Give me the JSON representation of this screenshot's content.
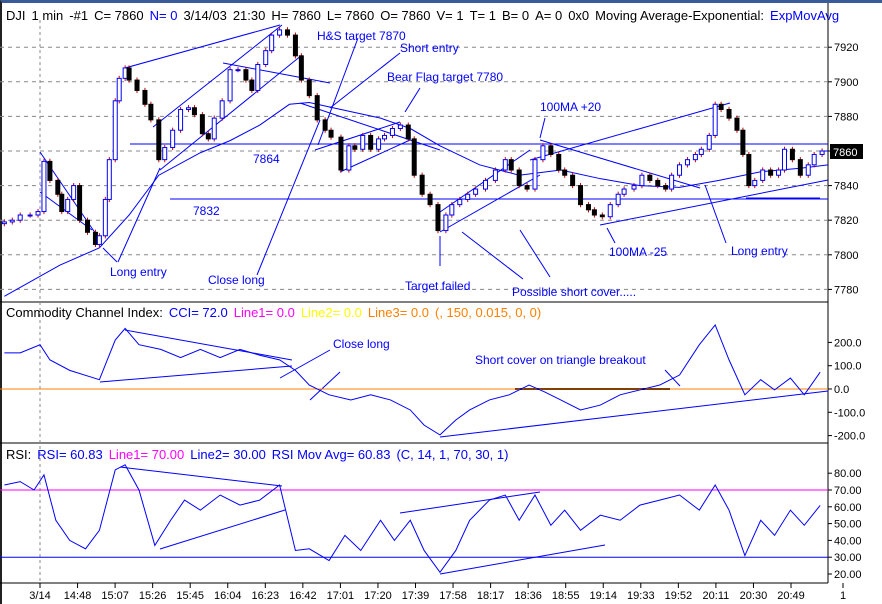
{
  "header": {
    "symbol": "DJI",
    "interval": "1 min",
    "chart_id": "-#1",
    "close": "C= 7860",
    "n": "N= 0",
    "date": "3/14/03",
    "time": "21:30",
    "high": "H= 7860",
    "low": "L= 7860",
    "open": "O= 7860",
    "volume": "V= 1",
    "ticks": "T= 1",
    "bid": "B= 0",
    "ask": "A= 0",
    "hex": "0x0",
    "study": "Moving Average-Exponential:",
    "study_name": "ExpMovAvg"
  },
  "cci_header": {
    "title": "Commodity Channel Index:",
    "cci": "CCI= 72.0",
    "line1": "Line1= 0.0",
    "line2": "Line2= 0.0",
    "line3": "Line3= 0.0",
    "params": "(, 150, 0.015, 0, 0)"
  },
  "rsi_header": {
    "title": "RSI:",
    "rsi": "RSI= 60.83",
    "line1": "Line1= 70.00",
    "line2": "Line2= 30.00",
    "mov_avg": "RSI Mov Avg= 60.83",
    "params": "(C, 14, 1, 70, 30, 1)"
  },
  "colors": {
    "up": "#0000ff",
    "down": "#000000",
    "wick": "#cc0000",
    "grid": "#888888",
    "cci_zero": "#ff8000",
    "rsi_line1": "#ff00ff",
    "rsi_line2": "#0000ff"
  },
  "current_price_label": "7860",
  "annotations": {
    "hs_target": "H&S target 7870",
    "short_entry": "Short entry",
    "bear_flag": "Bear Flag target 7780",
    "ma_plus": "100MA +20",
    "level_7864": "7864",
    "level_7832": "7832",
    "long_entry_1": "Long entry",
    "close_long": "Close long",
    "target_failed": "Target failed",
    "short_cover": "Possible short cover.....",
    "ma_minus": "100MA -25",
    "long_entry_2": "Long entry",
    "cci_close_long": "Close long",
    "cci_short_cover": "Short cover on triangle breakout"
  },
  "chart_data": [
    {
      "type": "candlestick",
      "title": "DJI 1 min",
      "y_ticks": [
        "7920",
        "7900",
        "7880",
        "7860",
        "7840",
        "7820",
        "7800",
        "7780"
      ],
      "ylim": [
        7772,
        7935
      ],
      "x_ticks": [
        "3/14",
        "14:48",
        "15:07",
        "15:26",
        "15:45",
        "16:04",
        "16:23",
        "16:42",
        "17:01",
        "17:20",
        "17:39",
        "17:58",
        "18:17",
        "18:36",
        "18:55",
        "19:14",
        "19:33",
        "19:52",
        "20:11",
        "20:30",
        "20:49",
        "1"
      ],
      "grid": true,
      "horizontal_levels": [
        7864,
        7832
      ],
      "close": [
        [
          "14:11",
          7819
        ],
        [
          "14:15",
          7820
        ],
        [
          "14:19",
          7823
        ],
        [
          "14:24",
          7823
        ],
        [
          "14:28",
          7825
        ],
        [
          "14:31",
          7854
        ],
        [
          "14:34",
          7843
        ],
        [
          "14:38",
          7835
        ],
        [
          "14:40",
          7825
        ],
        [
          "14:43",
          7832
        ],
        [
          "14:46",
          7840
        ],
        [
          "14:49",
          7820
        ],
        [
          "14:53",
          7813
        ],
        [
          "14:57",
          7806
        ],
        [
          "14:59",
          7811
        ],
        [
          "15:02",
          7832
        ],
        [
          "15:04",
          7855
        ],
        [
          "15:07",
          7889
        ],
        [
          "15:09",
          7902
        ],
        [
          "15:12",
          7908
        ],
        [
          "15:14",
          7901
        ],
        [
          "15:18",
          7895
        ],
        [
          "15:22",
          7887
        ],
        [
          "15:25",
          7878
        ],
        [
          "15:29",
          7855
        ],
        [
          "15:32",
          7862
        ],
        [
          "15:36",
          7872
        ],
        [
          "15:40",
          7884
        ],
        [
          "15:44",
          7885
        ],
        [
          "15:47",
          7881
        ],
        [
          "15:51",
          7870
        ],
        [
          "15:54",
          7867
        ],
        [
          "15:57",
          7879
        ],
        [
          "16:01",
          7889
        ],
        [
          "16:05",
          7907
        ],
        [
          "16:09",
          7907
        ],
        [
          "16:13",
          7901
        ],
        [
          "16:16",
          7895
        ],
        [
          "16:19",
          7910
        ],
        [
          "16:23",
          7918
        ],
        [
          "16:26",
          7927
        ],
        [
          "16:30",
          7930
        ],
        [
          "16:34",
          7927
        ],
        [
          "16:38",
          7915
        ],
        [
          "16:41",
          7901
        ],
        [
          "16:45",
          7892
        ],
        [
          "16:49",
          7878
        ],
        [
          "16:53",
          7872
        ],
        [
          "16:56",
          7868
        ],
        [
          "17:01",
          7849
        ],
        [
          "17:05",
          7863
        ],
        [
          "17:08",
          7861
        ],
        [
          "17:12",
          7869
        ],
        [
          "17:16",
          7861
        ],
        [
          "17:20",
          7867
        ],
        [
          "17:23",
          7869
        ],
        [
          "17:27",
          7873
        ],
        [
          "17:31",
          7875
        ],
        [
          "17:35",
          7867
        ],
        [
          "17:38",
          7846
        ],
        [
          "17:42",
          7835
        ],
        [
          "17:46",
          7829
        ],
        [
          "17:50",
          7814
        ],
        [
          "17:54",
          7823
        ],
        [
          "17:57",
          7829
        ],
        [
          "18:01",
          7832
        ],
        [
          "18:05",
          7835
        ],
        [
          "18:09",
          7838
        ],
        [
          "18:14",
          7843
        ],
        [
          "18:19",
          7849
        ],
        [
          "18:24",
          7855
        ],
        [
          "18:27",
          7849
        ],
        [
          "18:31",
          7840
        ],
        [
          "18:35",
          7838
        ],
        [
          "18:39",
          7855
        ],
        [
          "18:43",
          7863
        ],
        [
          "18:47",
          7858
        ],
        [
          "18:51",
          7849
        ],
        [
          "18:54",
          7846
        ],
        [
          "18:58",
          7840
        ],
        [
          "19:02",
          7829
        ],
        [
          "19:06",
          7826
        ],
        [
          "19:09",
          7823
        ],
        [
          "19:13",
          7822
        ],
        [
          "19:17",
          7829
        ],
        [
          "19:21",
          7835
        ],
        [
          "19:24",
          7838
        ],
        [
          "19:29",
          7840
        ],
        [
          "19:33",
          7846
        ],
        [
          "19:37",
          7843
        ],
        [
          "19:41",
          7840
        ],
        [
          "19:45",
          7838
        ],
        [
          "19:48",
          7846
        ],
        [
          "19:52",
          7852
        ],
        [
          "19:56",
          7855
        ],
        [
          "20:00",
          7858
        ],
        [
          "20:03",
          7861
        ],
        [
          "20:07",
          7869
        ],
        [
          "20:10",
          7887
        ],
        [
          "20:13",
          7884
        ],
        [
          "20:17",
          7879
        ],
        [
          "20:21",
          7872
        ],
        [
          "20:24",
          7858
        ],
        [
          "20:27",
          7840
        ],
        [
          "20:30",
          7843
        ],
        [
          "20:34",
          7849
        ],
        [
          "20:38",
          7846
        ],
        [
          "20:42",
          7849
        ],
        [
          "20:45",
          7861
        ],
        [
          "20:49",
          7855
        ],
        [
          "20:53",
          7846
        ],
        [
          "20:57",
          7852
        ],
        [
          "21:00",
          7858
        ],
        [
          "21:04",
          7860
        ]
      ],
      "moving_average": [
        [
          "14:11",
          7776
        ],
        [
          "14:39",
          7794
        ],
        [
          "14:59",
          7804
        ],
        [
          "15:14",
          7823
        ],
        [
          "15:29",
          7846
        ],
        [
          "15:50",
          7859
        ],
        [
          "16:05",
          7866
        ],
        [
          "16:20",
          7875
        ],
        [
          "16:35",
          7887
        ],
        [
          "16:45",
          7888
        ],
        [
          "17:01",
          7884
        ],
        [
          "17:21",
          7879
        ],
        [
          "17:36",
          7873
        ],
        [
          "17:51",
          7863
        ],
        [
          "18:11",
          7852
        ],
        [
          "18:31",
          7846
        ],
        [
          "18:52",
          7849
        ],
        [
          "19:12",
          7844
        ],
        [
          "19:32",
          7840
        ],
        [
          "19:52",
          7839
        ],
        [
          "20:12",
          7843
        ],
        [
          "20:33",
          7848
        ],
        [
          "20:53",
          7850
        ],
        [
          "21:07",
          7852
        ]
      ]
    },
    {
      "type": "line",
      "title": "Commodity Channel Index",
      "y_ticks": [
        "200.0",
        "100.0",
        "0.0",
        "-100.0",
        "-200.0"
      ],
      "ylim": [
        -230,
        230
      ],
      "reference_line": 0,
      "values": [
        [
          "14:11",
          155
        ],
        [
          "14:19",
          155
        ],
        [
          "14:29",
          190
        ],
        [
          "14:34",
          125
        ],
        [
          "14:44",
          80
        ],
        [
          "14:59",
          40
        ],
        [
          "15:07",
          210
        ],
        [
          "15:12",
          260
        ],
        [
          "15:19",
          190
        ],
        [
          "15:30",
          170
        ],
        [
          "15:40",
          135
        ],
        [
          "15:50",
          170
        ],
        [
          "16:00",
          135
        ],
        [
          "16:10",
          170
        ],
        [
          "16:20",
          145
        ],
        [
          "16:30",
          125
        ],
        [
          "16:38",
          80
        ],
        [
          "16:45",
          17
        ],
        [
          "16:55",
          -25
        ],
        [
          "17:06",
          -47
        ],
        [
          "17:16",
          -25
        ],
        [
          "17:26",
          -47
        ],
        [
          "17:36",
          -90
        ],
        [
          "17:43",
          -155
        ],
        [
          "17:51",
          -197
        ],
        [
          "17:59",
          -133
        ],
        [
          "18:06",
          -90
        ],
        [
          "18:16",
          -47
        ],
        [
          "18:26",
          -25
        ],
        [
          "18:36",
          17
        ],
        [
          "18:44",
          -13
        ],
        [
          "18:52",
          -47
        ],
        [
          "19:02",
          -90
        ],
        [
          "19:12",
          -69
        ],
        [
          "19:22",
          -25
        ],
        [
          "19:32",
          -4
        ],
        [
          "19:42",
          17
        ],
        [
          "19:52",
          60
        ],
        [
          "20:02",
          190
        ],
        [
          "20:10",
          275
        ],
        [
          "20:17",
          125
        ],
        [
          "20:25",
          -25
        ],
        [
          "20:33",
          40
        ],
        [
          "20:40",
          -4
        ],
        [
          "20:48",
          47
        ],
        [
          "20:55",
          -25
        ],
        [
          "21:03",
          72
        ]
      ]
    },
    {
      "type": "line",
      "title": "RSI",
      "y_ticks": [
        "80.00",
        "70.00",
        "60.00",
        "50.00",
        "40.00",
        "30.00",
        "20.00"
      ],
      "ylim": [
        16,
        88
      ],
      "reference_lines": [
        70,
        30
      ],
      "values": [
        [
          "14:11",
          73
        ],
        [
          "14:19",
          75
        ],
        [
          "14:26",
          70
        ],
        [
          "14:31",
          79
        ],
        [
          "14:37",
          52
        ],
        [
          "14:44",
          40
        ],
        [
          "14:52",
          35
        ],
        [
          "14:59",
          46
        ],
        [
          "15:07",
          82
        ],
        [
          "15:12",
          85
        ],
        [
          "15:19",
          70
        ],
        [
          "15:27",
          37
        ],
        [
          "15:35",
          52
        ],
        [
          "15:42",
          64
        ],
        [
          "15:50",
          58
        ],
        [
          "16:00",
          67
        ],
        [
          "16:10",
          61
        ],
        [
          "16:20",
          64
        ],
        [
          "16:30",
          73
        ],
        [
          "16:38",
          34
        ],
        [
          "16:45",
          35
        ],
        [
          "16:55",
          28
        ],
        [
          "17:03",
          43
        ],
        [
          "17:11",
          34
        ],
        [
          "17:21",
          52
        ],
        [
          "17:28",
          40
        ],
        [
          "17:36",
          52
        ],
        [
          "17:43",
          34
        ],
        [
          "17:51",
          21
        ],
        [
          "17:59",
          34
        ],
        [
          "18:06",
          52
        ],
        [
          "18:16",
          64
        ],
        [
          "18:24",
          67
        ],
        [
          "18:31",
          52
        ],
        [
          "18:39",
          67
        ],
        [
          "18:47",
          49
        ],
        [
          "18:54",
          58
        ],
        [
          "19:02",
          46
        ],
        [
          "19:12",
          55
        ],
        [
          "19:22",
          52
        ],
        [
          "19:32",
          61
        ],
        [
          "19:42",
          64
        ],
        [
          "19:52",
          67
        ],
        [
          "20:02",
          58
        ],
        [
          "20:10",
          73
        ],
        [
          "20:17",
          58
        ],
        [
          "20:25",
          31
        ],
        [
          "20:33",
          52
        ],
        [
          "20:40",
          43
        ],
        [
          "20:48",
          58
        ],
        [
          "20:55",
          49
        ],
        [
          "21:03",
          60.83
        ]
      ]
    }
  ]
}
